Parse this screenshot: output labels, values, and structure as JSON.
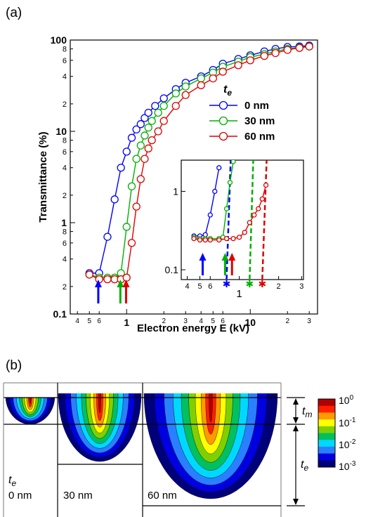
{
  "chart_data": {
    "type": "line",
    "panel_label": "(a)",
    "x_label": "Electron energy E (kV)",
    "y_label": "Transmittance (%)",
    "log_x": true,
    "log_y": true,
    "xlim": [
      0.35,
      35
    ],
    "ylim": [
      0.1,
      100
    ],
    "xticks": [
      {
        "value": 0.4,
        "label": "4"
      },
      {
        "value": 0.5,
        "label": "5"
      },
      {
        "value": 0.6,
        "label": "6"
      },
      1,
      2,
      3,
      4,
      5,
      6,
      10,
      {
        "value": 20,
        "label": "2"
      },
      {
        "value": 30,
        "label": "3"
      }
    ],
    "yticks": [
      0.1,
      {
        "value": 0.2,
        "label": "2"
      },
      {
        "value": 0.4,
        "label": "4"
      },
      {
        "value": 0.6,
        "label": "6"
      },
      {
        "value": 0.8,
        "label": "8"
      },
      1,
      2,
      4,
      6,
      8,
      10,
      {
        "value": 20,
        "label": "2"
      },
      {
        "value": 40,
        "label": "4"
      },
      {
        "value": 60,
        "label": "6"
      },
      {
        "value": 80,
        "label": "8"
      },
      100
    ],
    "legend_title": [
      "t",
      "e"
    ],
    "series": [
      {
        "name": "0 nm",
        "color": "#0000ff",
        "x": [
          0.5,
          0.6,
          0.7,
          0.8,
          0.9,
          1.0,
          1.1,
          1.2,
          1.3,
          1.4,
          1.5,
          1.7,
          2,
          2.5,
          3,
          4,
          5,
          6,
          8,
          10,
          13,
          16,
          20,
          25,
          30
        ],
        "values": [
          0.28,
          0.28,
          0.7,
          1.8,
          4,
          6,
          8.5,
          10.5,
          12,
          14,
          16,
          19,
          23,
          29,
          34,
          40,
          47,
          55,
          62,
          68,
          75,
          80,
          84,
          85,
          87
        ]
      },
      {
        "name": "30 nm",
        "color": "#00b000",
        "x": [
          0.5,
          0.6,
          0.7,
          0.8,
          0.9,
          1.0,
          1.1,
          1.2,
          1.3,
          1.4,
          1.5,
          1.6,
          1.8,
          2,
          2.5,
          3,
          4,
          5,
          6,
          8,
          10,
          13,
          16,
          20,
          25,
          30
        ],
        "values": [
          0.27,
          0.25,
          0.25,
          0.25,
          0.28,
          0.9,
          2.5,
          5,
          7,
          9,
          11,
          13,
          16,
          19,
          26,
          31,
          38,
          44,
          51,
          58,
          65,
          70,
          75,
          80,
          83,
          85
        ]
      },
      {
        "name": "60 nm",
        "color": "#e00000",
        "x": [
          0.5,
          0.6,
          0.7,
          0.8,
          0.9,
          1.0,
          1.1,
          1.2,
          1.3,
          1.4,
          1.5,
          1.6,
          1.8,
          2,
          2.5,
          3,
          4,
          5,
          6,
          8,
          10,
          13,
          16,
          20,
          25,
          30
        ],
        "values": [
          0.27,
          0.24,
          0.24,
          0.24,
          0.24,
          0.25,
          0.6,
          1.5,
          3,
          5,
          6.5,
          8,
          10,
          13,
          19,
          25,
          32,
          38,
          45,
          53,
          60,
          67,
          72,
          78,
          82,
          85
        ]
      }
    ],
    "arrows": [
      {
        "color": "#0000ff",
        "x": 0.59
      },
      {
        "color": "#00b000",
        "x": 0.89
      },
      {
        "color": "#e00000",
        "x": 0.99
      }
    ],
    "inset": {
      "xlim": [
        0.36,
        3.1
      ],
      "ylim": [
        0.075,
        2.5
      ],
      "xticks": [
        {
          "value": 0.4,
          "label": "4"
        },
        {
          "value": 0.5,
          "label": "5"
        },
        {
          "value": 0.6,
          "label": "6"
        },
        1,
        2,
        3
      ],
      "yticks": [
        0.1,
        1
      ],
      "series": [
        {
          "color": "#0000ff",
          "x": [
            0.45,
            0.5,
            0.55,
            0.6,
            0.65,
            0.7
          ],
          "values": [
            0.27,
            0.27,
            0.28,
            0.5,
            1.0,
            2.0
          ]
        },
        {
          "color": "#00b000",
          "x": [
            0.45,
            0.5,
            0.55,
            0.6,
            0.7,
            0.75,
            0.8,
            0.85,
            0.9
          ],
          "values": [
            0.26,
            0.25,
            0.25,
            0.25,
            0.25,
            0.26,
            0.6,
            1.3,
            2.4
          ]
        },
        {
          "color": "#e00000",
          "x": [
            0.45,
            0.5,
            0.55,
            0.6,
            0.7,
            0.8,
            0.9,
            1.0,
            1.1,
            1.2,
            1.3,
            1.4,
            1.5,
            1.6
          ],
          "values": [
            0.25,
            0.24,
            0.24,
            0.24,
            0.24,
            0.25,
            0.25,
            0.26,
            0.3,
            0.4,
            0.5,
            0.6,
            0.8,
            1.2
          ]
        }
      ],
      "arrows": [
        {
          "color": "#0000ff",
          "x": 0.525
        },
        {
          "color": "#00b000",
          "x": 0.78
        },
        {
          "color": "#e00000",
          "x": 0.88
        }
      ],
      "dashed_lines": [
        {
          "color": "#0000ff",
          "x": [
            0.8,
            0.86
          ],
          "values": [
            0.075,
            2.5
          ]
        },
        {
          "color": "#00b000",
          "x": [
            1.2,
            1.28
          ],
          "values": [
            0.075,
            2.5
          ]
        },
        {
          "color": "#e00000",
          "x": [
            1.5,
            1.62
          ],
          "values": [
            0.075,
            2.5
          ]
        }
      ]
    }
  },
  "panel_b": {
    "label": "(b)",
    "thickness_label": [
      "t",
      "e"
    ],
    "columns": [
      "0 nm",
      "30 nm",
      "60 nm"
    ],
    "dims": [
      [
        "t",
        "m"
      ],
      [
        "t",
        "e"
      ]
    ],
    "colorbar": [
      {
        "base": "10",
        "exp": "0"
      },
      {
        "base": "10",
        "exp": "-1"
      },
      {
        "base": "10",
        "exp": "-2"
      },
      {
        "base": "10",
        "exp": "-3"
      }
    ]
  }
}
